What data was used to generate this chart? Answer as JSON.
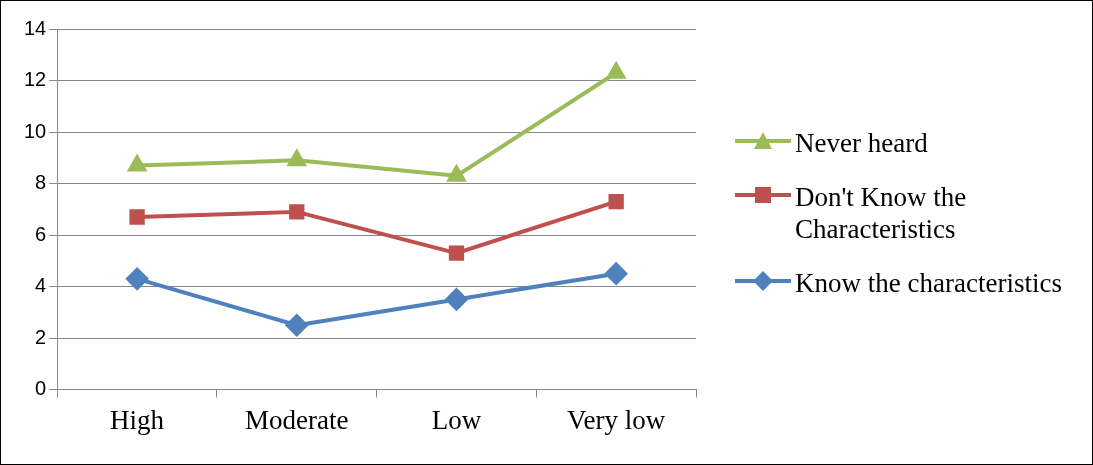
{
  "chart_data": {
    "type": "line",
    "categories": [
      "High",
      "Moderate",
      "Low",
      "Very low"
    ],
    "series": [
      {
        "name": "Never heard",
        "color": "#9bbb59",
        "marker": "triangle",
        "values": [
          8.7,
          8.9,
          8.3,
          12.3
        ]
      },
      {
        "name": "Don't Know the Characteristics",
        "color": "#c0504d",
        "marker": "square",
        "values": [
          6.7,
          6.9,
          5.3,
          7.3
        ]
      },
      {
        "name": "Know the characteristics",
        "color": "#4f81bd",
        "marker": "diamond",
        "values": [
          4.3,
          2.5,
          3.5,
          4.5
        ]
      }
    ],
    "ylim": [
      0,
      14
    ],
    "yticks": [
      0,
      2,
      4,
      6,
      8,
      10,
      12,
      14
    ],
    "grid": "y",
    "legend": "right",
    "line_style": "solid"
  }
}
